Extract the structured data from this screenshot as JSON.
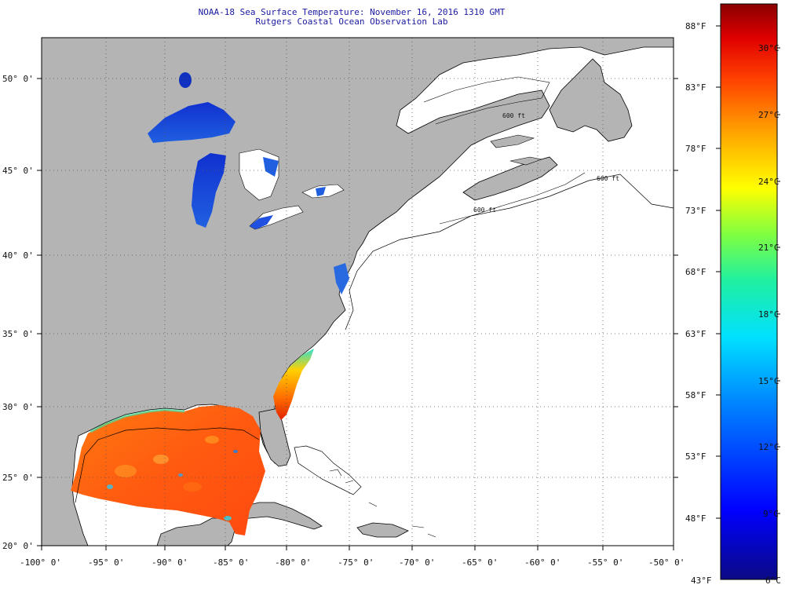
{
  "header": {
    "title": "NOAA-18 Sea Surface Temperature:  November 16, 2016 1310 GMT",
    "subtitle": "Rutgers Coastal Ocean Observation Lab"
  },
  "map": {
    "lon_ticks": [
      "-100° 0'",
      "-95° 0'",
      "-90° 0'",
      "-85° 0'",
      "-80° 0'",
      "-75° 0'",
      "-70° 0'",
      "-65° 0'",
      "-60° 0'",
      "-55° 0'",
      "-50° 0'"
    ],
    "lat_ticks": [
      "50° 0'",
      "45° 0'",
      "40° 0'",
      "35° 0'",
      "30° 0'",
      "25° 0'",
      "20° 0'"
    ],
    "isobath_label": "600 ft",
    "colors": {
      "land": "#b4b4b4",
      "ocean": "#ffffff",
      "coast": "#000000",
      "grid": "#555555"
    }
  },
  "colorbar": {
    "f_labels": [
      "88°F",
      "83°F",
      "78°F",
      "73°F",
      "68°F",
      "63°F",
      "58°F",
      "53°F",
      "48°F"
    ],
    "f_bottom": "43°F",
    "c_labels": [
      "30°C",
      "27°C",
      "24°C",
      "21°C",
      "18°C",
      "15°C",
      "12°C",
      "9°C"
    ],
    "c_bottom": "6°C",
    "colors": [
      "#0a0a85",
      "#0000ff",
      "#0080ff",
      "#00e0ff",
      "#20f0a0",
      "#80ff40",
      "#ffff00",
      "#ffa000",
      "#ff4000",
      "#e00000",
      "#8a0000"
    ]
  }
}
